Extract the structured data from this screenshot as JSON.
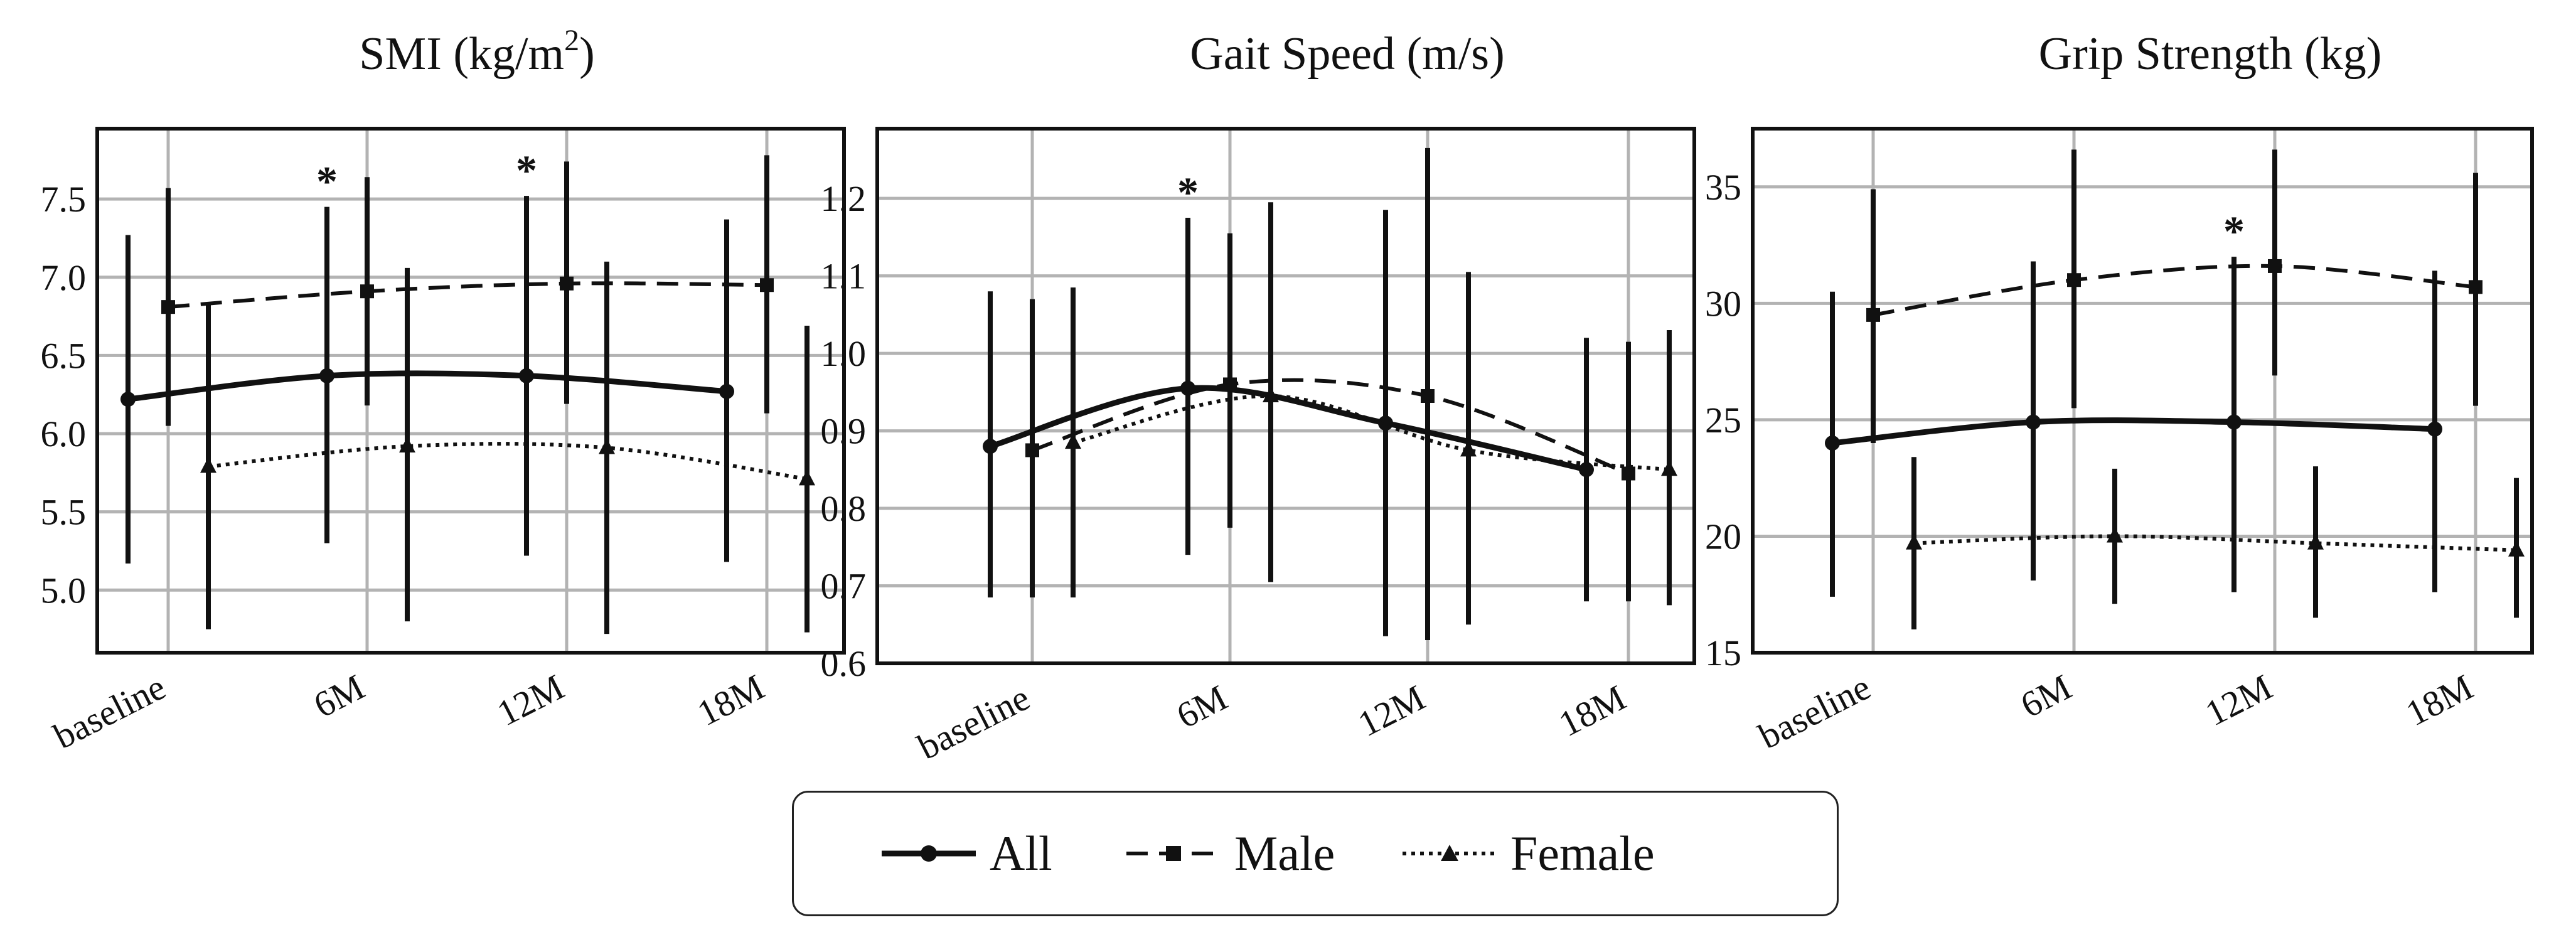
{
  "style": {
    "ink": "#111111",
    "grid": "#b3b3b3",
    "background": "#ffffff"
  },
  "legend": {
    "all": "All",
    "male": "Male",
    "female": "Female"
  },
  "chart_data": [
    {
      "type": "line",
      "title": "SMI (kg/m2)",
      "title_base": "SMI (kg/m",
      "title_sup": "2",
      "title_end": ")",
      "categories": [
        "baseline",
        "6M",
        "12M",
        "18M"
      ],
      "ylim": [
        4.6,
        7.95
      ],
      "yticks": [
        5.0,
        5.5,
        6.0,
        6.5,
        7.0,
        7.5
      ],
      "ytick_labels": [
        "5.0",
        "5.5",
        "6.0",
        "6.5",
        "7.0",
        "7.5"
      ],
      "grid": true,
      "series": [
        {
          "name": "All",
          "values": [
            6.22,
            6.37,
            6.37,
            6.27
          ],
          "lower": [
            5.17,
            5.3,
            5.22,
            5.18
          ],
          "upper": [
            7.27,
            7.45,
            7.52,
            7.37
          ]
        },
        {
          "name": "Male",
          "values": [
            6.81,
            6.91,
            6.96,
            6.95
          ],
          "lower": [
            6.05,
            6.18,
            6.19,
            6.13
          ],
          "upper": [
            7.57,
            7.64,
            7.74,
            7.78
          ]
        },
        {
          "name": "Female",
          "values": [
            5.79,
            5.92,
            5.91,
            5.71
          ],
          "lower": [
            4.75,
            4.8,
            4.72,
            4.73
          ],
          "upper": [
            6.84,
            7.06,
            7.1,
            6.69
          ]
        }
      ],
      "annotations": [
        {
          "text": "*",
          "category": "6M"
        },
        {
          "text": "*",
          "category": "12M"
        }
      ]
    },
    {
      "type": "line",
      "title": "Gait Speed (m/s)",
      "categories": [
        "baseline",
        "6M",
        "12M",
        "18M"
      ],
      "ylim": [
        0.6,
        1.29
      ],
      "yticks": [
        0.6,
        0.7,
        0.8,
        0.9,
        1.0,
        1.1,
        1.2
      ],
      "ytick_labels": [
        "0.6",
        "0.7",
        "0.8",
        "0.9",
        "1.0",
        "1.1",
        "1.2"
      ],
      "grid": true,
      "series": [
        {
          "name": "All",
          "values": [
            0.88,
            0.955,
            0.91,
            0.85
          ],
          "lower": [
            0.685,
            0.74,
            0.635,
            0.68
          ],
          "upper": [
            1.08,
            1.175,
            1.185,
            1.02
          ]
        },
        {
          "name": "Male",
          "values": [
            0.875,
            0.96,
            0.945,
            0.845
          ],
          "lower": [
            0.685,
            0.775,
            0.63,
            0.68
          ],
          "upper": [
            1.07,
            1.155,
            1.265,
            1.015
          ]
        },
        {
          "name": "Female",
          "values": [
            0.885,
            0.945,
            0.875,
            0.85
          ],
          "lower": [
            0.685,
            0.705,
            0.65,
            0.675
          ],
          "upper": [
            1.085,
            1.195,
            1.105,
            1.03
          ]
        }
      ],
      "annotations": [
        {
          "text": "*",
          "category": "6M"
        }
      ]
    },
    {
      "type": "line",
      "title": "Grip Strength (kg)",
      "categories": [
        "baseline",
        "6M",
        "12M",
        "18M"
      ],
      "ylim": [
        15,
        37.5
      ],
      "yticks": [
        15,
        20,
        25,
        30,
        35
      ],
      "ytick_labels": [
        "15",
        "20",
        "25",
        "30",
        "35"
      ],
      "grid": true,
      "series": [
        {
          "name": "All",
          "values": [
            24.0,
            24.9,
            24.9,
            24.6
          ],
          "lower": [
            17.4,
            18.1,
            17.6,
            17.6
          ],
          "upper": [
            30.5,
            31.8,
            32.0,
            31.4
          ]
        },
        {
          "name": "Male",
          "values": [
            29.5,
            31.0,
            31.6,
            30.7
          ],
          "lower": [
            24.0,
            25.5,
            26.9,
            25.6
          ],
          "upper": [
            34.9,
            36.6,
            36.6,
            35.6
          ]
        },
        {
          "name": "Female",
          "values": [
            19.7,
            20.0,
            19.7,
            19.4
          ],
          "lower": [
            16.0,
            17.1,
            16.5,
            16.5
          ],
          "upper": [
            23.4,
            22.9,
            23.0,
            22.5
          ]
        }
      ],
      "annotations": [
        {
          "text": "*",
          "category": "12M"
        }
      ]
    }
  ]
}
